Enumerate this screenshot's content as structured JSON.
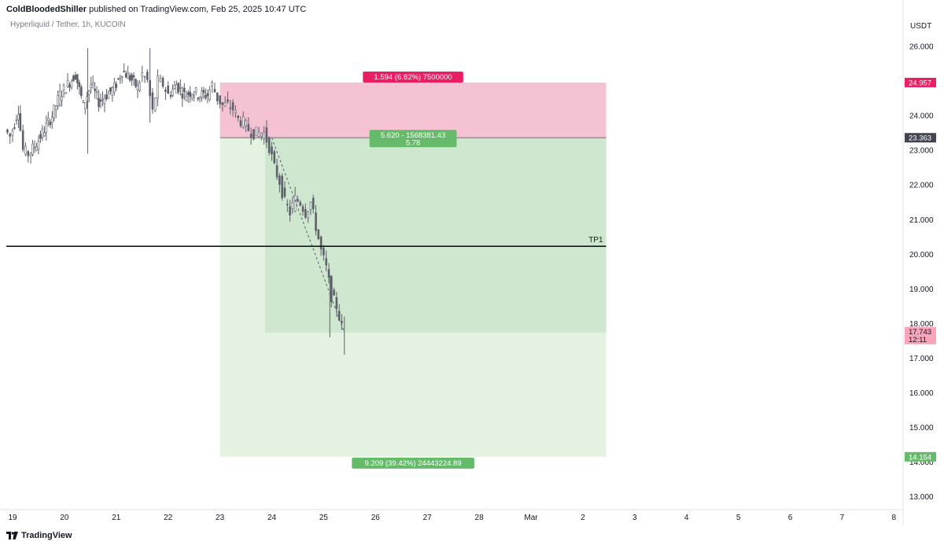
{
  "header": {
    "author": "ColdBloodedShiller",
    "published_text": " published on TradingView.com, Feb 25, 2025 10:47 UTC"
  },
  "symbol_info": "Hyperliquid / Tether, 1h, KUCOIN",
  "brand": "TradingView",
  "colors": {
    "stop_zone": "#f5c2d3",
    "target_zone": "#d6ecd6",
    "target_zone_inner": "#cfe6cf",
    "target_zone_outer": "#e4f2e2",
    "bearish_tag": "#e91e63",
    "bullish_tag": "#66bb6a",
    "candle": "#5d606b",
    "entry_tag": "#434651",
    "current_tag": "#f7a3b8"
  },
  "chart_data": {
    "type": "candlestick",
    "title": "Hyperliquid / Tether, 1h, KUCOIN",
    "y_axis_unit": "USDT",
    "y_ticks": [
      "26.000",
      "25.000",
      "24.000",
      "23.000",
      "22.000",
      "21.000",
      "20.000",
      "19.000",
      "18.000",
      "17.000",
      "16.000",
      "15.000",
      "14.000",
      "13.000"
    ],
    "ylim": [
      12.5,
      26.6
    ],
    "x_ticks": [
      {
        "label": "19",
        "day": 0
      },
      {
        "label": "20",
        "day": 1
      },
      {
        "label": "21",
        "day": 2
      },
      {
        "label": "22",
        "day": 3
      },
      {
        "label": "23",
        "day": 4
      },
      {
        "label": "24",
        "day": 5
      },
      {
        "label": "25",
        "day": 6
      },
      {
        "label": "26",
        "day": 7
      },
      {
        "label": "27",
        "day": 8
      },
      {
        "label": "28",
        "day": 9
      },
      {
        "label": "Mar",
        "day": 10
      },
      {
        "label": "2",
        "day": 11
      },
      {
        "label": "3",
        "day": 12
      },
      {
        "label": "4",
        "day": 13
      },
      {
        "label": "5",
        "day": 14
      },
      {
        "label": "6",
        "day": 15
      },
      {
        "label": "7",
        "day": 16
      },
      {
        "label": "8",
        "day": 17
      }
    ],
    "price_series_day_close": [
      [
        -0.1,
        23.6
      ],
      [
        0.0,
        23.4
      ],
      [
        0.15,
        24.2
      ],
      [
        0.25,
        23.0
      ],
      [
        0.35,
        22.9
      ],
      [
        0.5,
        23.2
      ],
      [
        0.65,
        23.6
      ],
      [
        0.8,
        24.0
      ],
      [
        0.95,
        24.6
      ],
      [
        1.1,
        24.9
      ],
      [
        1.25,
        25.2
      ],
      [
        1.4,
        24.3
      ],
      [
        1.55,
        24.9
      ],
      [
        1.7,
        24.4
      ],
      [
        1.85,
        24.6
      ],
      [
        2.0,
        24.8
      ],
      [
        2.15,
        25.3
      ],
      [
        2.3,
        25.1
      ],
      [
        2.45,
        24.8
      ],
      [
        2.55,
        25.2
      ],
      [
        2.65,
        25.0
      ],
      [
        2.75,
        24.1
      ],
      [
        2.85,
        25.0
      ],
      [
        2.95,
        24.9
      ],
      [
        3.05,
        24.6
      ],
      [
        3.2,
        24.9
      ],
      [
        3.35,
        24.6
      ],
      [
        3.5,
        24.7
      ],
      [
        3.65,
        24.6
      ],
      [
        3.8,
        24.6
      ],
      [
        3.9,
        24.9
      ],
      [
        4.0,
        24.5
      ],
      [
        4.1,
        24.3
      ],
      [
        4.2,
        24.3
      ],
      [
        4.3,
        24.2
      ],
      [
        4.4,
        23.9
      ],
      [
        4.5,
        23.8
      ],
      [
        4.6,
        23.6
      ],
      [
        4.7,
        23.5
      ],
      [
        4.8,
        23.5
      ],
      [
        4.9,
        23.5
      ],
      [
        5.0,
        23.1
      ],
      [
        5.1,
        22.5
      ],
      [
        5.2,
        22.1
      ],
      [
        5.3,
        21.5
      ],
      [
        5.4,
        21.2
      ],
      [
        5.5,
        21.6
      ],
      [
        5.6,
        21.5
      ],
      [
        5.7,
        21.2
      ],
      [
        5.8,
        21.5
      ],
      [
        5.9,
        20.8
      ],
      [
        6.0,
        20.1
      ],
      [
        6.1,
        19.6
      ],
      [
        6.2,
        18.8
      ],
      [
        6.3,
        18.5
      ],
      [
        6.4,
        17.9
      ]
    ],
    "price_labels": [
      {
        "label": "24.957",
        "value": 24.957,
        "tag": "bearish_tag"
      },
      {
        "label": "23.363",
        "value": 23.363,
        "tag": "entry_tag"
      },
      {
        "label": "17.743",
        "value": 17.743,
        "tag": "current_tag",
        "sub_label": "12:11"
      },
      {
        "label": "14.154",
        "value": 14.154,
        "tag": "bullish_tag"
      }
    ],
    "position": {
      "type": "short",
      "entry": 23.363,
      "stop": 24.957,
      "target": 14.154,
      "start_day": 4.0,
      "end_day": 11.45,
      "stop_label": "1.594 (6.82%) 7500000",
      "ratio_label_line1": "5.620 - 1568381.43",
      "ratio_label_line2": "5.78",
      "target_label": "9.209 (39.42%) 24443224.89"
    },
    "horizontal_line": {
      "value": 20.23,
      "label": "TP1",
      "start_day": -0.1,
      "end_day": 11.45
    },
    "trend_line": {
      "from": [
        5.0,
        23.36
      ],
      "to": [
        6.4,
        17.74
      ]
    }
  }
}
